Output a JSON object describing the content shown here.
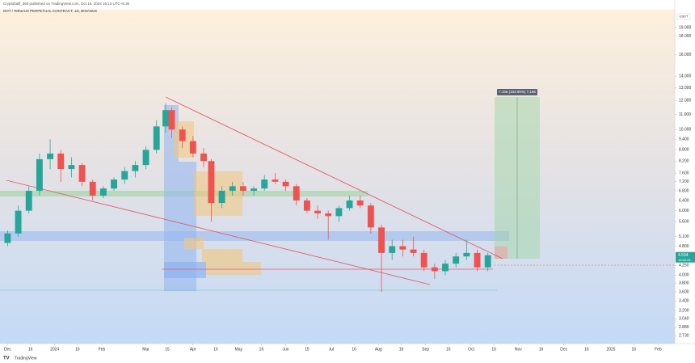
{
  "chart_data": {
    "type": "candlestick",
    "title": "DOT / TetherUS PERPETUAL CONTRACT, 1D, BINANCE",
    "subtitle": "Cryptoballl_360 published on TradingView.com, Oct 15, 2024 16:13 UTC+5:30",
    "currency": "USDT",
    "position_label": "7.166 (163.95%) 7,166",
    "current_price": 4.534,
    "countdown": "15:56:56",
    "brand": "TradingView",
    "log_scale": true,
    "up_color": "#26a69a",
    "down_color": "#ef5350",
    "x": [
      "2023-12-01",
      "2023-12-08",
      "2023-12-15",
      "2023-12-22",
      "2023-12-29",
      "2024-01-05",
      "2024-01-12",
      "2024-01-19",
      "2024-01-26",
      "2024-02-02",
      "2024-02-09",
      "2024-02-16",
      "2024-02-23",
      "2024-03-01",
      "2024-03-08",
      "2024-03-14",
      "2024-03-18",
      "2024-03-25",
      "2024-04-01",
      "2024-04-08",
      "2024-04-13",
      "2024-04-20",
      "2024-04-27",
      "2024-05-04",
      "2024-05-11",
      "2024-05-18",
      "2024-05-25",
      "2024-06-01",
      "2024-06-08",
      "2024-06-15",
      "2024-06-22",
      "2024-06-29",
      "2024-07-06",
      "2024-07-13",
      "2024-07-20",
      "2024-07-27",
      "2024-08-03",
      "2024-08-10",
      "2024-08-17",
      "2024-08-24",
      "2024-08-31",
      "2024-09-07",
      "2024-09-14",
      "2024-09-21",
      "2024-09-28",
      "2024-10-05",
      "2024-10-12"
    ],
    "open": [
      4.9,
      5.2,
      6.0,
      6.8,
      8.3,
      8.6,
      7.8,
      8.0,
      7.2,
      6.6,
      6.9,
      7.3,
      7.7,
      8.0,
      8.8,
      10.2,
      11.3,
      10.0,
      9.3,
      8.6,
      8.2,
      6.3,
      6.8,
      7.0,
      6.8,
      6.9,
      7.3,
      7.2,
      7.0,
      6.4,
      6.0,
      5.9,
      5.8,
      6.1,
      6.4,
      6.2,
      5.4,
      4.6,
      4.8,
      4.7,
      4.6,
      4.2,
      4.1,
      4.3,
      4.5,
      4.6,
      4.2
    ],
    "high": [
      5.3,
      6.2,
      7.0,
      8.6,
      9.4,
      8.8,
      8.4,
      8.1,
      7.3,
      7.0,
      7.4,
      7.9,
      8.2,
      9.0,
      10.6,
      11.8,
      11.5,
      10.2,
      9.6,
      8.9,
      8.3,
      7.0,
      7.2,
      7.2,
      7.0,
      7.5,
      7.6,
      7.3,
      7.1,
      6.5,
      6.2,
      6.0,
      6.2,
      6.6,
      6.6,
      6.3,
      5.5,
      5.0,
      5.0,
      5.1,
      4.7,
      4.3,
      4.4,
      4.6,
      5.0,
      4.7,
      4.6
    ],
    "low": [
      4.8,
      5.1,
      5.9,
      6.6,
      7.8,
      7.2,
      7.4,
      7.0,
      6.4,
      6.5,
      6.8,
      7.1,
      7.4,
      7.8,
      8.6,
      9.8,
      9.5,
      8.9,
      8.4,
      7.9,
      5.6,
      6.1,
      6.6,
      6.6,
      6.6,
      6.8,
      7.1,
      6.8,
      6.2,
      5.9,
      5.7,
      5.0,
      5.6,
      6.0,
      6.1,
      5.2,
      3.6,
      4.4,
      4.5,
      4.5,
      4.1,
      3.9,
      4.0,
      4.2,
      4.4,
      4.1,
      4.1
    ],
    "close": [
      5.2,
      6.0,
      6.8,
      8.3,
      8.6,
      7.8,
      8.0,
      7.2,
      6.6,
      6.9,
      7.3,
      7.7,
      8.0,
      8.8,
      10.2,
      11.3,
      10.0,
      9.3,
      8.6,
      8.2,
      6.3,
      6.8,
      7.0,
      6.8,
      6.9,
      7.3,
      7.2,
      7.0,
      6.4,
      6.0,
      5.9,
      5.8,
      6.1,
      6.4,
      6.2,
      5.4,
      4.6,
      4.8,
      4.7,
      4.6,
      4.2,
      4.1,
      4.3,
      4.5,
      4.6,
      4.2,
      4.534
    ],
    "xlim": [
      "2023-11-26",
      "2025-02-12"
    ],
    "xticks": [
      {
        "value": "2023-12-01",
        "label": "Dec"
      },
      {
        "value": "2023-12-16",
        "label": "16"
      },
      {
        "value": "2024-01-01",
        "label": "2024"
      },
      {
        "value": "2024-01-16",
        "label": "16"
      },
      {
        "value": "2024-02-01",
        "label": "Feb"
      },
      {
        "value": "2024-03-01",
        "label": "Mar"
      },
      {
        "value": "2024-03-15",
        "label": "15"
      },
      {
        "value": "2024-04-01",
        "label": "Apr"
      },
      {
        "value": "2024-04-16",
        "label": "16"
      },
      {
        "value": "2024-05-01",
        "label": "May"
      },
      {
        "value": "2024-05-16",
        "label": "16"
      },
      {
        "value": "2024-06-01",
        "label": "Jun"
      },
      {
        "value": "2024-06-15",
        "label": "15"
      },
      {
        "value": "2024-07-01",
        "label": "Jul"
      },
      {
        "value": "2024-07-16",
        "label": "16"
      },
      {
        "value": "2024-08-01",
        "label": "Aug"
      },
      {
        "value": "2024-08-16",
        "label": "16"
      },
      {
        "value": "2024-09-01",
        "label": "Sep"
      },
      {
        "value": "2024-09-16",
        "label": "16"
      },
      {
        "value": "2024-10-01",
        "label": "Oct"
      },
      {
        "value": "2024-10-16",
        "label": "16"
      },
      {
        "value": "2024-11-01",
        "label": "Nov"
      },
      {
        "value": "2024-11-16",
        "label": "16"
      },
      {
        "value": "2024-12-01",
        "label": "Dec"
      },
      {
        "value": "2024-12-16",
        "label": "16"
      },
      {
        "value": "2025-01-01",
        "label": "2025"
      },
      {
        "value": "2025-01-16",
        "label": "16"
      },
      {
        "value": "2025-02-01",
        "label": "Feb"
      }
    ],
    "ylim": [
      2.6,
      22.6
    ],
    "yticks": [
      {
        "value": 19,
        "label": "19.000"
      },
      {
        "value": 18,
        "label": "18.000"
      },
      {
        "value": 16,
        "label": "16.000"
      },
      {
        "value": 14,
        "label": "14.000"
      },
      {
        "value": 13,
        "label": "13.000"
      },
      {
        "value": 12,
        "label": "12.000"
      },
      {
        "value": 11,
        "label": "11.000"
      },
      {
        "value": 10,
        "label": "10.000"
      },
      {
        "value": 9.4,
        "label": "9.400"
      },
      {
        "value": 8.8,
        "label": "8.800"
      },
      {
        "value": 8.2,
        "label": "8.200"
      },
      {
        "value": 7.6,
        "label": "7.600"
      },
      {
        "value": 7.2,
        "label": "7.200"
      },
      {
        "value": 6.8,
        "label": "6.800"
      },
      {
        "value": 6.4,
        "label": "6.400"
      },
      {
        "value": 6,
        "label": "6.000"
      },
      {
        "value": 5.6,
        "label": "5.600"
      },
      {
        "value": 5.1,
        "label": "5.100"
      },
      {
        "value": 4.8,
        "label": "4.800"
      },
      {
        "value": 4.25,
        "label": "4.250"
      },
      {
        "value": 4,
        "label": "4.000"
      },
      {
        "value": 3.8,
        "label": "3.800"
      },
      {
        "value": 3.6,
        "label": "3.600"
      },
      {
        "value": 3.4,
        "label": "3.400"
      },
      {
        "value": 3.2,
        "label": "3.200"
      },
      {
        "value": 3.04,
        "label": "3.040"
      },
      {
        "value": 2.88,
        "label": "2.880"
      },
      {
        "value": 2.73,
        "label": "2.730"
      }
    ]
  }
}
